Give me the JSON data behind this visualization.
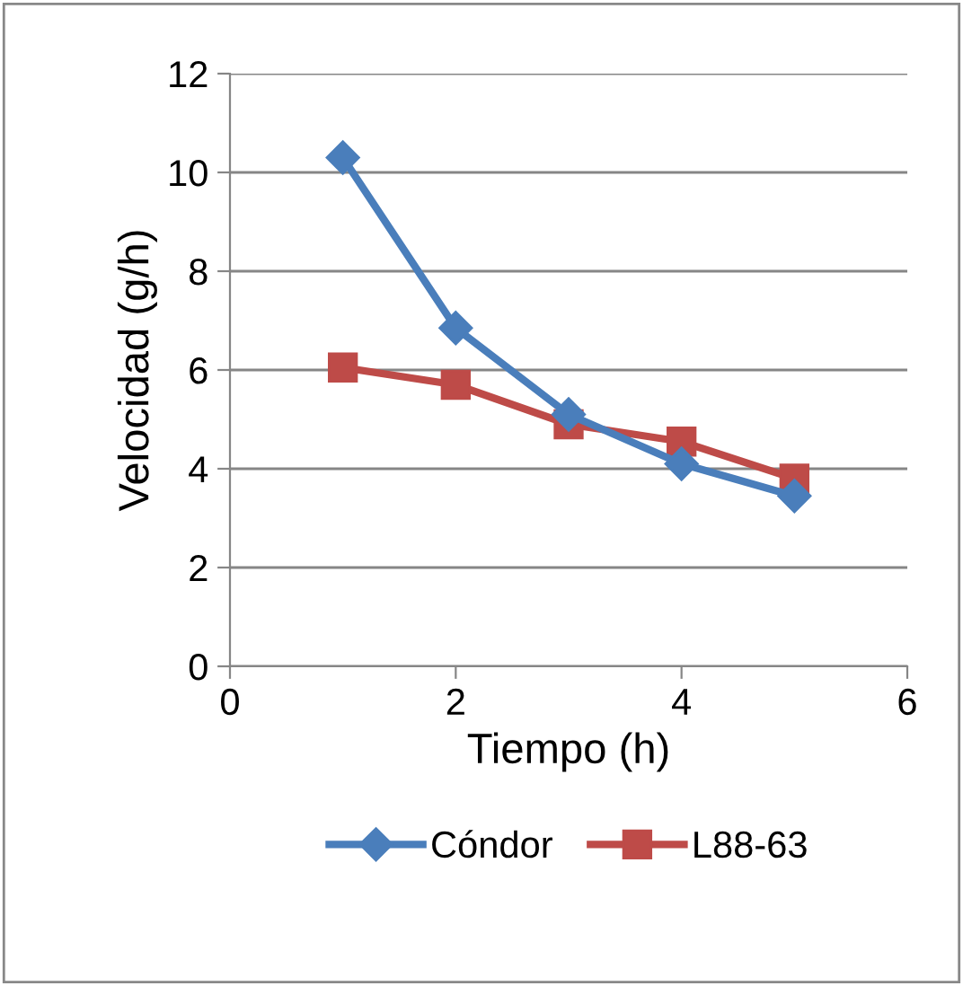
{
  "chart_data": {
    "type": "line",
    "xlabel": "Tiempo (h)",
    "ylabel": "Velocidad (g/h)",
    "x": [
      1,
      2,
      3,
      4,
      5
    ],
    "series": [
      {
        "name": "Cóndor",
        "color": "#4a7ebb",
        "marker": "diamond",
        "values": [
          10.3,
          6.85,
          5.1,
          4.1,
          3.45
        ]
      },
      {
        "name": "L88-63",
        "color": "#be4b48",
        "marker": "square",
        "values": [
          6.05,
          5.7,
          4.9,
          4.55,
          3.8
        ]
      }
    ],
    "xlim": [
      0,
      6
    ],
    "xticks": [
      0,
      2,
      4,
      6
    ],
    "ylim": [
      0,
      12
    ],
    "yticks": [
      0,
      2,
      4,
      6,
      8,
      10,
      12
    ],
    "grid": "y",
    "legend": "bottom",
    "line_style": "solid"
  }
}
